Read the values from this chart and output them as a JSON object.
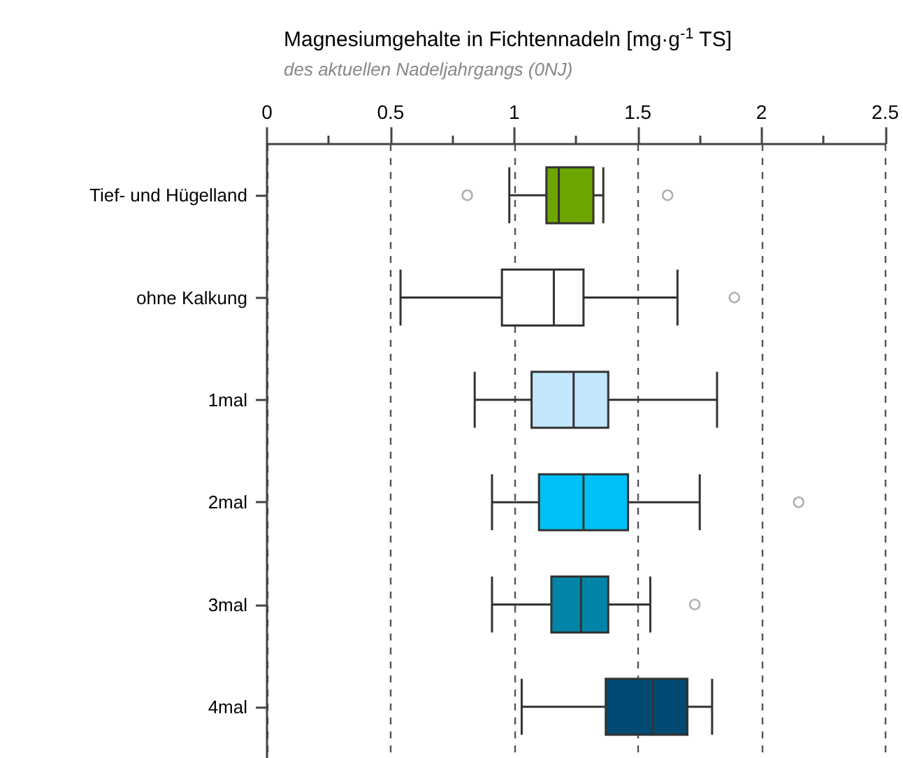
{
  "chart_data": {
    "type": "box",
    "title": "Magnesiumgehalte in Fichtennadeln [mg·g$^{-1}$ TS]",
    "subtitle": "des aktuellen Nadeljahrgangs (0NJ)",
    "categories": [
      "Tief- und Hügelland",
      "ohne Kalkung",
      "1mal",
      "2mal",
      "3mal",
      "4mal"
    ],
    "orientation": "horizontal",
    "boxes": [
      {
        "low": 0.98,
        "q1": 1.13,
        "median": 1.18,
        "q3": 1.32,
        "high": 1.36,
        "outliers": [
          0.81,
          1.62
        ]
      },
      {
        "low": 0.54,
        "q1": 0.95,
        "median": 1.16,
        "q3": 1.28,
        "high": 1.66,
        "outliers": [
          1.89
        ]
      },
      {
        "low": 0.84,
        "q1": 1.07,
        "median": 1.24,
        "q3": 1.38,
        "high": 1.82
      },
      {
        "low": 0.91,
        "q1": 1.1,
        "median": 1.28,
        "q3": 1.46,
        "high": 1.75,
        "outliers": [
          2.15
        ]
      },
      {
        "low": 0.91,
        "q1": 1.15,
        "median": 1.27,
        "q3": 1.38,
        "high": 1.55,
        "outliers": [
          1.73
        ]
      },
      {
        "low": 1.03,
        "q1": 1.37,
        "median": 1.56,
        "q3": 1.7,
        "high": 1.8
      }
    ],
    "colors": [
      "#6ea600",
      "#ffffff",
      "#c2e7fb",
      "#00c1f7",
      "#0085a9",
      "#004a74"
    ],
    "xlim": [
      0,
      2.5
    ],
    "xticks": [
      0,
      {
        "value": 0.25,
        "label": null
      },
      0.5,
      {
        "value": 0.75,
        "label": null
      },
      1,
      {
        "value": 1.25,
        "label": null
      },
      1.5,
      {
        "value": 1.75,
        "label": null
      },
      2,
      {
        "value": 2.25,
        "label": null
      },
      2.5
    ],
    "grid": "x"
  }
}
